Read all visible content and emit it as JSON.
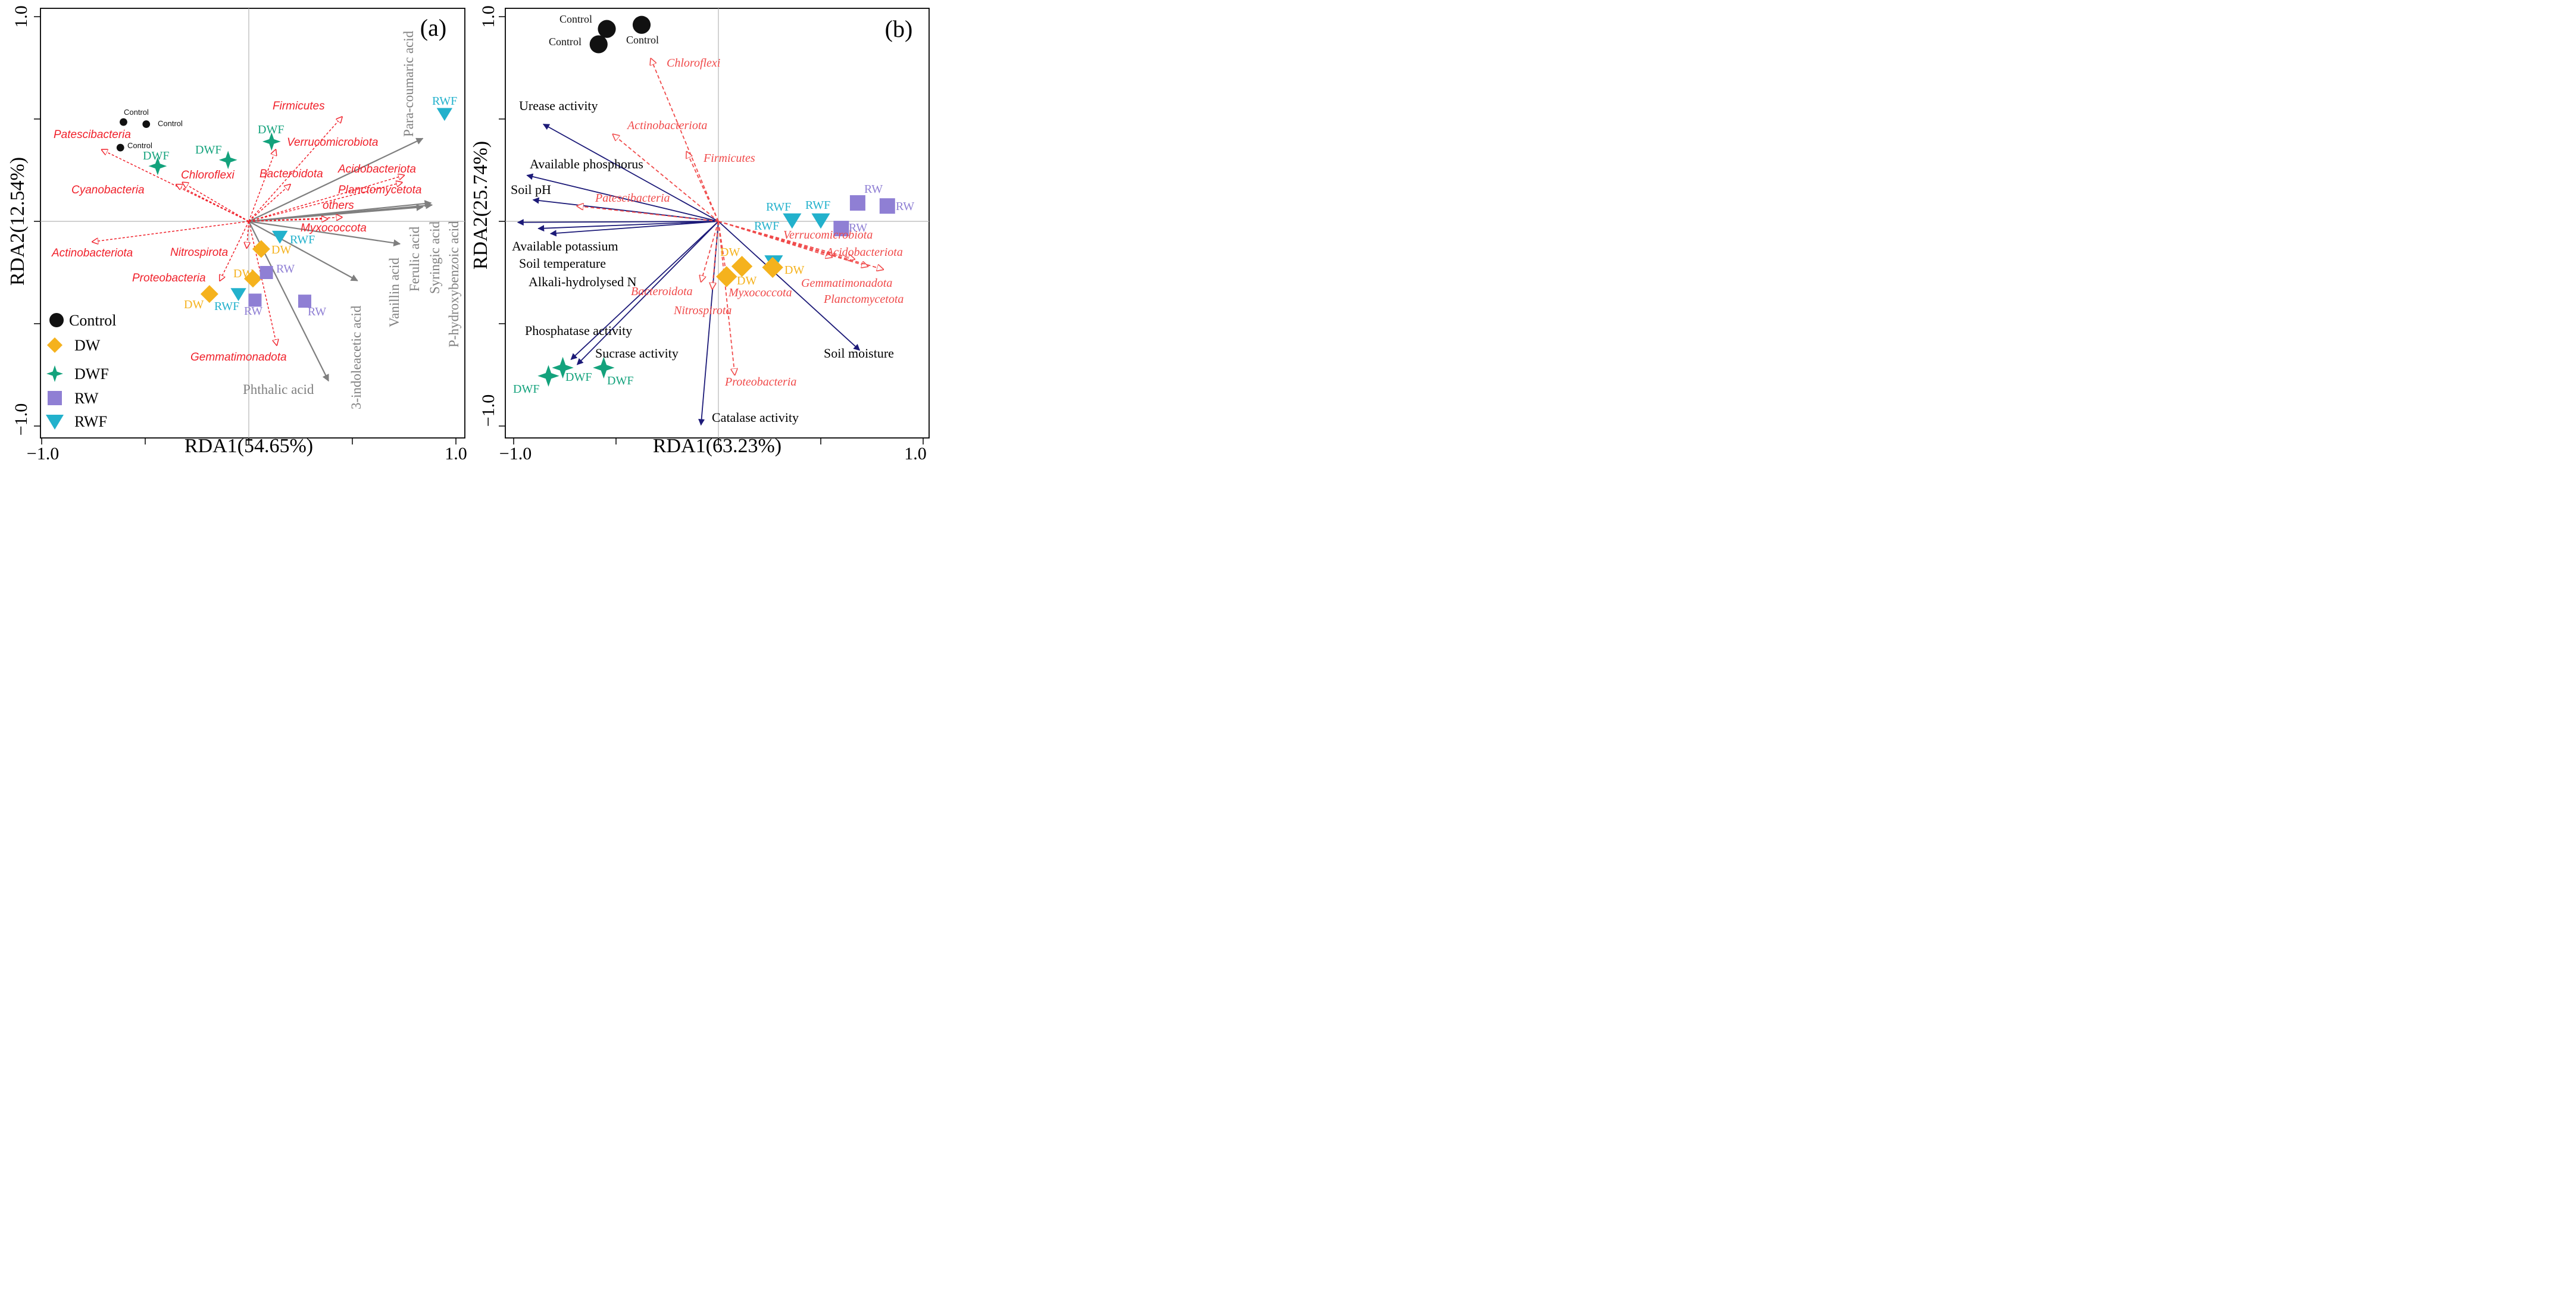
{
  "colors": {
    "control": "#111111",
    "dw": "#f5b21d",
    "dwf": "#13a27c",
    "rw": "#8f7fd4",
    "rwf": "#22b1cc",
    "species": "#f0202a",
    "species_b": "#f04a4a",
    "phenolic": "#7f7f7f",
    "soil": "#1c1a78"
  },
  "chart_data": [
    {
      "type": "scatter",
      "panel_label": "(a)",
      "xlabel": "RDA1(54.65%)",
      "ylabel": "RDA2(12.54%)",
      "xlim": [
        -1.0,
        1.0
      ],
      "ylim": [
        -1.0,
        1.0
      ],
      "x_tick_labels": [
        "−1.0",
        "1.0"
      ],
      "y_tick_labels": [
        "−1.0",
        "1.0"
      ],
      "legend": [
        {
          "name": "Control",
          "marker": "circle"
        },
        {
          "name": "DW",
          "marker": "diamond"
        },
        {
          "name": "DWF",
          "marker": "star"
        },
        {
          "name": "RW",
          "marker": "square"
        },
        {
          "name": "RWF",
          "marker": "triangle"
        }
      ],
      "samples": [
        {
          "group": "Control",
          "label": "Control",
          "x": -0.605,
          "y": 0.485
        },
        {
          "group": "Control",
          "label": "Control",
          "x": -0.495,
          "y": 0.475
        },
        {
          "group": "Control",
          "label": "Control",
          "x": -0.62,
          "y": 0.36
        },
        {
          "group": "DWF",
          "label": "DWF",
          "x": -0.44,
          "y": 0.27
        },
        {
          "group": "DWF",
          "label": "DWF",
          "x": -0.1,
          "y": 0.3
        },
        {
          "group": "DWF",
          "label": "DWF",
          "x": 0.11,
          "y": 0.39
        },
        {
          "group": "RWF",
          "label": "RWF",
          "x": 0.945,
          "y": 0.525
        },
        {
          "group": "RWF",
          "label": "RWF",
          "x": 0.15,
          "y": -0.075
        },
        {
          "group": "RWF",
          "label": "RWF",
          "x": -0.05,
          "y": -0.355
        },
        {
          "group": "DW",
          "label": "DW",
          "x": 0.06,
          "y": -0.135
        },
        {
          "group": "DW",
          "label": "DW",
          "x": 0.02,
          "y": -0.28
        },
        {
          "group": "DW",
          "label": "DW",
          "x": -0.19,
          "y": -0.355
        },
        {
          "group": "RW",
          "label": "RW",
          "x": 0.085,
          "y": -0.25
        },
        {
          "group": "RW",
          "label": "RW",
          "x": 0.03,
          "y": -0.385
        },
        {
          "group": "RW",
          "label": "RW",
          "x": 0.27,
          "y": -0.39
        }
      ],
      "species_vectors": [
        {
          "name": "Patescibacteria",
          "x": -0.71,
          "y": 0.35
        },
        {
          "name": "Cyanobacteria",
          "x": -0.35,
          "y": 0.18
        },
        {
          "name": "Chloroflexi",
          "x": -0.32,
          "y": 0.19
        },
        {
          "name": "Actinobacteriota",
          "x": -0.755,
          "y": -0.1
        },
        {
          "name": "Nitrospirota",
          "x": -0.01,
          "y": -0.13
        },
        {
          "name": "Proteobacteria",
          "x": -0.14,
          "y": -0.29
        },
        {
          "name": "Gemmatimonadota",
          "x": 0.135,
          "y": -0.605
        },
        {
          "name": "Firmicutes",
          "x": 0.45,
          "y": 0.51
        },
        {
          "name": "Verrucomicrobiota",
          "x": 0.13,
          "y": 0.35
        },
        {
          "name": "Bacteroidota",
          "x": 0.2,
          "y": 0.18
        },
        {
          "name": "Acidobacteriota",
          "x": 0.75,
          "y": 0.225
        },
        {
          "name": "Planctomycetota",
          "x": 0.74,
          "y": 0.19
        },
        {
          "name": "others",
          "x": 0.45,
          "y": 0.02
        },
        {
          "name": "Myxococcota",
          "x": 0.38,
          "y": 0.012
        }
      ],
      "phenolic_vectors": [
        {
          "name": "Para-coumaric acid",
          "x": 0.84,
          "y": 0.405
        },
        {
          "name": "P-hydroxybenzoic acid",
          "x": 0.885,
          "y": 0.08
        },
        {
          "name": "Syringic acid",
          "x": 0.88,
          "y": 0.09
        },
        {
          "name": "Ferulic acid",
          "x": 0.84,
          "y": 0.07
        },
        {
          "name": "Vanillin acid",
          "x": 0.73,
          "y": -0.11
        },
        {
          "name": "3-indoleacetic acid",
          "x": 0.525,
          "y": -0.29
        },
        {
          "name": "Phthalic acid",
          "x": 0.385,
          "y": -0.78
        }
      ]
    },
    {
      "type": "scatter",
      "panel_label": "(b)",
      "xlabel": "RDA1(63.23%)",
      "ylabel": "RDA2(25.74%)",
      "xlim": [
        -1.0,
        1.0
      ],
      "ylim": [
        -1.0,
        1.0
      ],
      "x_tick_labels": [
        "−1.0",
        "1.0"
      ],
      "y_tick_labels": [
        "−1.0",
        "1.0"
      ],
      "samples": [
        {
          "group": "Control",
          "label": "Control",
          "x": -0.545,
          "y": 0.94
        },
        {
          "group": "Control",
          "label": "Control",
          "x": -0.585,
          "y": 0.865
        },
        {
          "group": "Control",
          "label": "Control",
          "x": -0.375,
          "y": 0.96
        },
        {
          "group": "RWF",
          "label": "RWF",
          "x": 0.36,
          "y": 0.005
        },
        {
          "group": "RWF",
          "label": "RWF",
          "x": 0.5,
          "y": 0.005
        },
        {
          "group": "RWF",
          "label": "RWF",
          "x": 0.27,
          "y": -0.2
        },
        {
          "group": "RW",
          "label": "RW",
          "x": 0.68,
          "y": 0.09
        },
        {
          "group": "RW",
          "label": "RW",
          "x": 0.825,
          "y": 0.075
        },
        {
          "group": "RW",
          "label": "RW",
          "x": 0.6,
          "y": -0.035
        },
        {
          "group": "DW",
          "label": "DW",
          "x": 0.04,
          "y": -0.27
        },
        {
          "group": "DW",
          "label": "DW",
          "x": 0.115,
          "y": -0.22
        },
        {
          "group": "DW",
          "label": "DW",
          "x": 0.265,
          "y": -0.225
        },
        {
          "group": "DWF",
          "label": "DWF",
          "x": -0.83,
          "y": -0.755
        },
        {
          "group": "DWF",
          "label": "DWF",
          "x": -0.76,
          "y": -0.715
        },
        {
          "group": "DWF",
          "label": "DWF",
          "x": -0.56,
          "y": -0.715
        }
      ],
      "species_vectors": [
        {
          "name": "Chloroflexi",
          "x": -0.33,
          "y": 0.795
        },
        {
          "name": "Actinobacteriota",
          "x": -0.515,
          "y": 0.425
        },
        {
          "name": "Firmicutes",
          "x": -0.155,
          "y": 0.34
        },
        {
          "name": "Patescibacteria",
          "x": -0.69,
          "y": 0.075
        },
        {
          "name": "Verrucomicrobiota",
          "x": 0.555,
          "y": -0.175
        },
        {
          "name": "Acidobacteriota",
          "x": 0.665,
          "y": -0.185
        },
        {
          "name": "Gemmatimonadota",
          "x": 0.73,
          "y": -0.22
        },
        {
          "name": "Planctomycetota",
          "x": 0.805,
          "y": -0.235
        },
        {
          "name": "Bacteroidota",
          "x": -0.085,
          "y": -0.295
        },
        {
          "name": "Myxococcota",
          "x": 0.045,
          "y": -0.305
        },
        {
          "name": "Nitrospirota",
          "x": -0.03,
          "y": -0.33
        },
        {
          "name": "Proteobacteria",
          "x": 0.08,
          "y": -0.75
        }
      ],
      "soil_vectors": [
        {
          "name": "Urease activity",
          "label": "Urease activity",
          "x": -0.855,
          "y": 0.475
        },
        {
          "name": "Available phosphorus",
          "label": "Available phosphorus",
          "x": -0.935,
          "y": 0.225
        },
        {
          "name": "Soil pH",
          "label": "Soil pH",
          "x": -0.905,
          "y": 0.105
        },
        {
          "name": "Available potassium",
          "label": "Available potassium",
          "x": -0.98,
          "y": -0.005
        },
        {
          "name": "Soil temperature",
          "label": "Soil temperature",
          "x": -0.88,
          "y": -0.035
        },
        {
          "name": "Alkali-hydrolysed N",
          "label": "Alkali-hydrolysed  N",
          "x": -0.82,
          "y": -0.06
        },
        {
          "name": "Phosphatase activity",
          "label": "Phosphatase activity",
          "x": -0.72,
          "y": -0.675
        },
        {
          "name": "Sucrase activity",
          "label": "Sucrase activity",
          "x": -0.69,
          "y": -0.7
        },
        {
          "name": "Catalase activity",
          "label": "Catalase activity",
          "x": -0.085,
          "y": -0.995
        },
        {
          "name": "Soil moisture",
          "label": "Soil moisture",
          "x": 0.69,
          "y": -0.63
        }
      ]
    }
  ]
}
